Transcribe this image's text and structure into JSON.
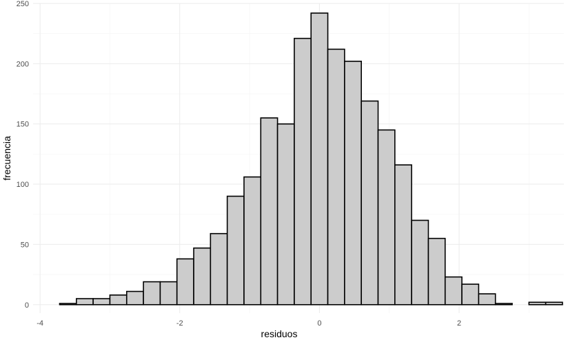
{
  "chart_data": {
    "type": "bar",
    "subtype": "histogram",
    "title": "",
    "xlabel": "residuos",
    "ylabel": "frecuencia",
    "xlim": [
      -4.1,
      3.5
    ],
    "ylim": [
      -7,
      250
    ],
    "x_ticks": [
      -4,
      -2,
      0,
      2
    ],
    "x_tick_labels": [
      "-4",
      "-2",
      "0",
      "2"
    ],
    "y_ticks": [
      0,
      50,
      100,
      150,
      200,
      250
    ],
    "y_tick_labels": [
      "0",
      "50",
      "100",
      "150",
      "200",
      "250"
    ],
    "grid": true,
    "legend": "none",
    "bin_width": 0.24,
    "bins": [
      {
        "x0": -3.72,
        "x1": -3.48,
        "count": 1
      },
      {
        "x0": -3.48,
        "x1": -3.24,
        "count": 5
      },
      {
        "x0": -3.24,
        "x1": -3.0,
        "count": 5
      },
      {
        "x0": -3.0,
        "x1": -2.76,
        "count": 8
      },
      {
        "x0": -2.76,
        "x1": -2.52,
        "count": 11
      },
      {
        "x0": -2.52,
        "x1": -2.28,
        "count": 19
      },
      {
        "x0": -2.28,
        "x1": -2.04,
        "count": 19
      },
      {
        "x0": -2.04,
        "x1": -1.8,
        "count": 38
      },
      {
        "x0": -1.8,
        "x1": -1.56,
        "count": 47
      },
      {
        "x0": -1.56,
        "x1": -1.32,
        "count": 59
      },
      {
        "x0": -1.32,
        "x1": -1.08,
        "count": 90
      },
      {
        "x0": -1.08,
        "x1": -0.84,
        "count": 106
      },
      {
        "x0": -0.84,
        "x1": -0.6,
        "count": 155
      },
      {
        "x0": -0.6,
        "x1": -0.36,
        "count": 150
      },
      {
        "x0": -0.36,
        "x1": -0.12,
        "count": 221
      },
      {
        "x0": -0.12,
        "x1": 0.12,
        "count": 242
      },
      {
        "x0": 0.12,
        "x1": 0.36,
        "count": 212
      },
      {
        "x0": 0.36,
        "x1": 0.6,
        "count": 202
      },
      {
        "x0": 0.6,
        "x1": 0.84,
        "count": 169
      },
      {
        "x0": 0.84,
        "x1": 1.08,
        "count": 145
      },
      {
        "x0": 1.08,
        "x1": 1.32,
        "count": 116
      },
      {
        "x0": 1.32,
        "x1": 1.56,
        "count": 70
      },
      {
        "x0": 1.56,
        "x1": 1.8,
        "count": 55
      },
      {
        "x0": 1.8,
        "x1": 2.04,
        "count": 23
      },
      {
        "x0": 2.04,
        "x1": 2.28,
        "count": 17
      },
      {
        "x0": 2.28,
        "x1": 2.52,
        "count": 9
      },
      {
        "x0": 2.52,
        "x1": 2.76,
        "count": 1
      },
      {
        "x0": 2.76,
        "x1": 3.0,
        "count": 0
      },
      {
        "x0": 3.0,
        "x1": 3.24,
        "count": 2
      },
      {
        "x0": 3.24,
        "x1": 3.48,
        "count": 2
      }
    ],
    "colors": {
      "bar_fill": "#cccccc",
      "bar_stroke": "#000000",
      "background": "#ffffff",
      "grid": "#ebebeb"
    }
  }
}
